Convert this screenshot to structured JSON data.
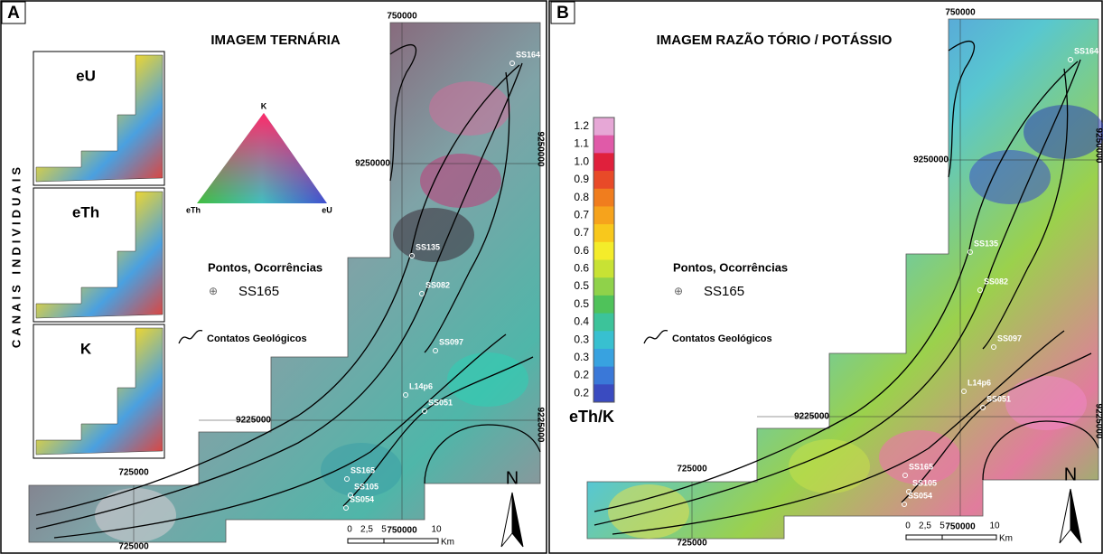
{
  "panels": [
    {
      "letter": "A",
      "title": "IMAGEM TERNÁRIA",
      "side_label": "CANAIS INDIVIDUAIS",
      "insets": [
        "eU",
        "eTh",
        "K"
      ],
      "triangle": {
        "top": "K",
        "left": "eTh",
        "right": "eU"
      },
      "legend": {
        "points_title": "Pontos, Ocorrências",
        "point_example": "SS165",
        "contacts": "Contatos Geológicos"
      },
      "coords": {
        "top": "750000",
        "left_north": "9250000",
        "right_north": "9250000",
        "left_south": "9225000",
        "right_south": "9225000",
        "top_west": "725000",
        "bottom_west": "725000",
        "bottom_east": "750000"
      },
      "points": [
        "SS164",
        "SS135",
        "SS082",
        "SS097",
        "L14p6",
        "SS051",
        "SS165",
        "SS105",
        "SS054"
      ],
      "scale": [
        "0",
        "2,5",
        "5",
        "10"
      ],
      "scale_unit": "Km",
      "north": "N"
    },
    {
      "letter": "B",
      "title": "IMAGEM RAZÃO TÓRIO / POTÁSSIO",
      "colorbar": {
        "labels": [
          "1.2",
          "1.1",
          "1.0",
          "0.9",
          "0.8",
          "0.7",
          "0.7",
          "0.6",
          "0.6",
          "0.5",
          "0.5",
          "0.4",
          "0.3",
          "0.3",
          "0.2",
          "0.2"
        ],
        "title": "eTh/K"
      },
      "legend": {
        "points_title": "Pontos, Ocorrências",
        "point_example": "SS165",
        "contacts": "Contatos Geológicos"
      },
      "coords": {
        "top": "750000",
        "left_north": "9250000",
        "right_north": "9250000",
        "left_south": "9225000",
        "right_south": "9225000",
        "top_west": "725000",
        "bottom_west": "725000",
        "bottom_east": "750000"
      },
      "points": [
        "SS164",
        "SS135",
        "SS082",
        "SS097",
        "L14p6",
        "SS051",
        "SS165",
        "SS105",
        "SS054"
      ],
      "scale": [
        "0",
        "2,5",
        "5",
        "10"
      ],
      "scale_unit": "Km",
      "north": "N"
    }
  ]
}
